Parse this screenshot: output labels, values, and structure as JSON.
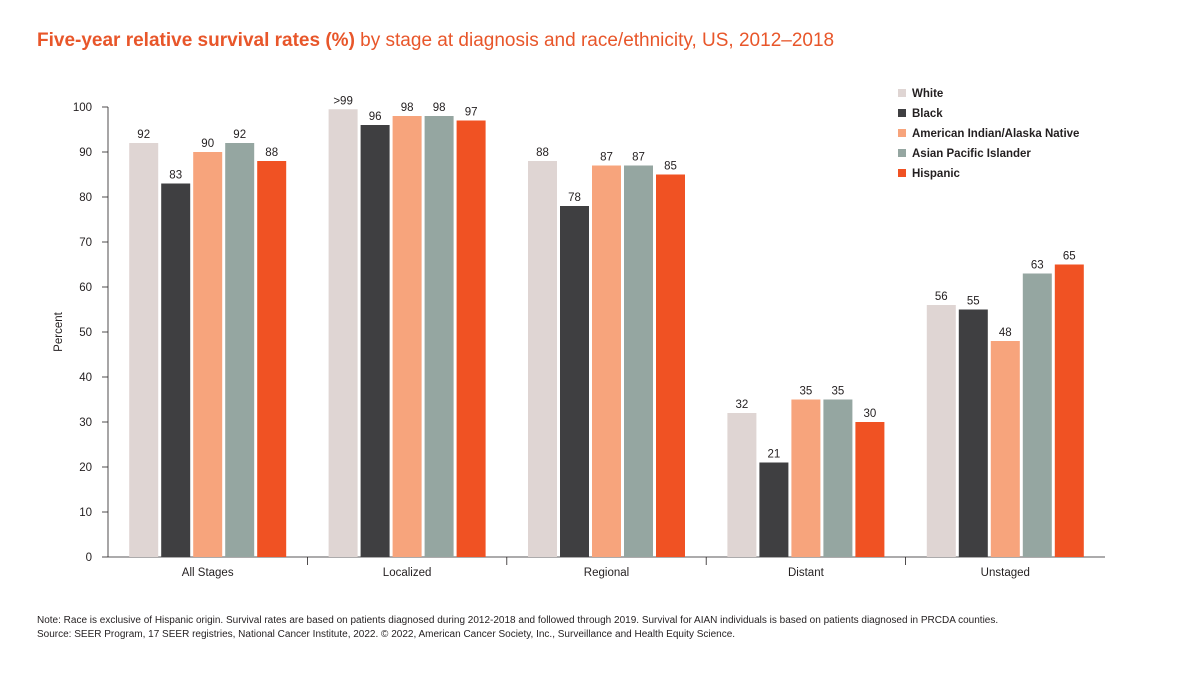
{
  "title_bold": "Five-year relative survival rates (%)",
  "title_rest": " by stage at diagnosis and race/ethnicity, US, 2012–2018",
  "notes": [
    "Note: Race is exclusive of Hispanic origin. Survival rates are based on patients diagnosed during 2012-2018 and followed through 2019. Survival for AIAN individuals is based on patients diagnosed in PRCDA counties.",
    "Source: SEER Program, 17 SEER registries, National Cancer Institute, 2022. © 2022, American Cancer Society, Inc., Surveillance and Health Equity Science."
  ],
  "chart_data": {
    "type": "bar",
    "title": "Five-year relative survival rates (%) by stage at diagnosis and race/ethnicity, US, 2012–2018",
    "xlabel": "",
    "ylabel": "Percent",
    "ylim": [
      0,
      100
    ],
    "yticks": [
      0,
      10,
      20,
      30,
      40,
      50,
      60,
      70,
      80,
      90,
      100
    ],
    "grid": false,
    "legend": "top-right",
    "categories": [
      "All Stages",
      "Localized",
      "Regional",
      "Distant",
      "Unstaged"
    ],
    "series": [
      {
        "name": "White",
        "color": "#dfd5d3",
        "values": [
          92,
          99.5,
          88,
          32,
          56
        ],
        "labels": [
          "92",
          ">99",
          "88",
          "32",
          "56"
        ]
      },
      {
        "name": "Black",
        "color": "#3f3f41",
        "values": [
          83,
          96,
          78,
          21,
          55
        ],
        "labels": [
          "83",
          "96",
          "78",
          "21",
          "55"
        ]
      },
      {
        "name": "American Indian/Alaska Native",
        "color": "#f7a47c",
        "values": [
          90,
          98,
          87,
          35,
          48
        ],
        "labels": [
          "90",
          "98",
          "87",
          "35",
          "48"
        ]
      },
      {
        "name": "Asian Pacific Islander",
        "color": "#95a6a1",
        "values": [
          92,
          98,
          87,
          35,
          63
        ],
        "labels": [
          "92",
          "98",
          "87",
          "35",
          "63"
        ]
      },
      {
        "name": "Hispanic",
        "color": "#f05223",
        "values": [
          88,
          97,
          85,
          30,
          65
        ],
        "labels": [
          "88",
          "97",
          "85",
          "30",
          "65"
        ]
      }
    ]
  }
}
